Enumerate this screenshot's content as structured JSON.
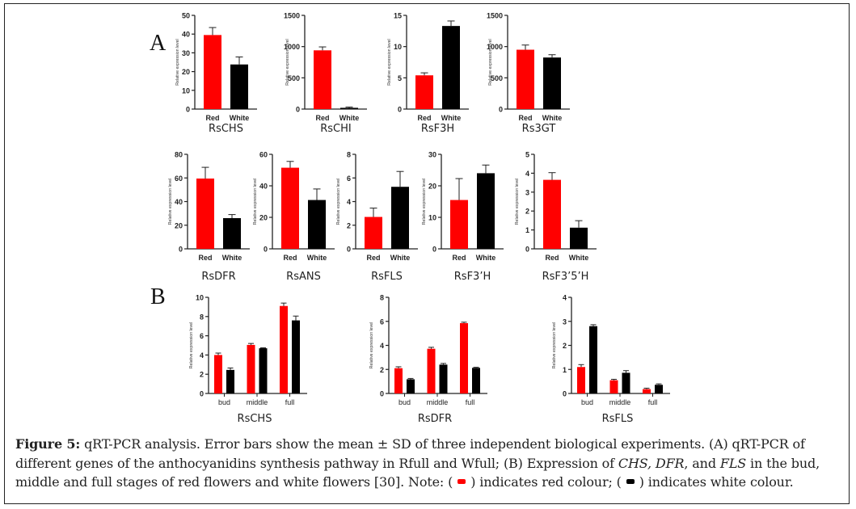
{
  "panel_labels": {
    "a": "A",
    "b": "B"
  },
  "colors": {
    "red": "#ff0000",
    "white_series": "#000000",
    "axis": "#222222"
  },
  "caption": {
    "figure_label": "Figure 5:",
    "part1": " qRT-PCR analysis. Error bars show the mean ± SD of three independent biological experiments. (A) qRT-PCR of different genes of the anthocyanidins synthesis pathway in Rfull and Wfull; (B) Expression of ",
    "gene1": "CHS,",
    "sep1": " ",
    "gene2": "DFR",
    "sep2": ", and ",
    "gene3": "FLS",
    "part2": " in the bud, middle and full stages of red flowers and white flowers [30]. Note: (",
    "part3": ") indicates red colour; (",
    "part4": ") indicates white colour."
  },
  "chart_data": [
    {
      "type": "bar",
      "panel": "A",
      "title": "RsCHS",
      "ylabel": "Relative expression level",
      "categories": [
        "Red",
        "White"
      ],
      "ylim": [
        0,
        50
      ],
      "yticks": [
        0,
        10,
        20,
        30,
        40,
        50
      ],
      "series": [
        {
          "name": "Red",
          "values": [
            39.5,
            0
          ],
          "errors": [
            4,
            0
          ]
        },
        {
          "name": "White",
          "values": [
            0,
            23.8
          ],
          "errors": [
            0,
            4
          ]
        }
      ]
    },
    {
      "type": "bar",
      "panel": "A",
      "title": "RsCHI",
      "ylabel": "Relative expression level",
      "categories": [
        "Red",
        "White"
      ],
      "ylim": [
        0,
        1500
      ],
      "yticks": [
        0,
        500,
        1000,
        1500
      ],
      "series": [
        {
          "name": "Red",
          "values": [
            940,
            0
          ],
          "errors": [
            55,
            0
          ]
        },
        {
          "name": "White",
          "values": [
            0,
            20
          ],
          "errors": [
            0,
            12
          ]
        }
      ]
    },
    {
      "type": "bar",
      "panel": "A",
      "title": "RsF3H",
      "ylabel": "Relative expression level",
      "categories": [
        "Red",
        "White"
      ],
      "ylim": [
        0,
        15
      ],
      "yticks": [
        0,
        5,
        10,
        15
      ],
      "series": [
        {
          "name": "Red",
          "values": [
            5.4,
            0
          ],
          "errors": [
            0.4,
            0
          ]
        },
        {
          "name": "White",
          "values": [
            0,
            13.3
          ],
          "errors": [
            0,
            0.8
          ]
        }
      ]
    },
    {
      "type": "bar",
      "panel": "A",
      "title": "Rs3GT",
      "ylabel": "Relative expression level",
      "categories": [
        "Red",
        "White"
      ],
      "ylim": [
        0,
        1500
      ],
      "yticks": [
        0,
        500,
        1000,
        1500
      ],
      "series": [
        {
          "name": "Red",
          "values": [
            950,
            0
          ],
          "errors": [
            75,
            0
          ]
        },
        {
          "name": "White",
          "values": [
            0,
            825
          ],
          "errors": [
            0,
            45
          ]
        }
      ]
    },
    {
      "type": "bar",
      "panel": "A",
      "title": "RsDFR",
      "ylabel": "Relative expression level",
      "categories": [
        "Red",
        "White"
      ],
      "ylim": [
        0,
        80
      ],
      "yticks": [
        0,
        20,
        40,
        60,
        80
      ],
      "series": [
        {
          "name": "Red",
          "values": [
            59.5,
            0
          ],
          "errors": [
            9.5,
            0
          ]
        },
        {
          "name": "White",
          "values": [
            0,
            26
          ],
          "errors": [
            0,
            3
          ]
        }
      ]
    },
    {
      "type": "bar",
      "panel": "A",
      "title": "RsANS",
      "ylabel": "Relative expression level",
      "categories": [
        "Red",
        "White"
      ],
      "ylim": [
        0,
        60
      ],
      "yticks": [
        0,
        20,
        40,
        60
      ],
      "series": [
        {
          "name": "Red",
          "values": [
            51.5,
            0
          ],
          "errors": [
            4,
            0
          ]
        },
        {
          "name": "White",
          "values": [
            0,
            31
          ],
          "errors": [
            0,
            7
          ]
        }
      ]
    },
    {
      "type": "bar",
      "panel": "A",
      "title": "RsFLS",
      "ylabel": "Relative expression level",
      "categories": [
        "Red",
        "White"
      ],
      "ylim": [
        0,
        8
      ],
      "yticks": [
        0,
        2,
        4,
        6,
        8
      ],
      "series": [
        {
          "name": "Red",
          "values": [
            2.7,
            0
          ],
          "errors": [
            0.75,
            0
          ]
        },
        {
          "name": "White",
          "values": [
            0,
            5.25
          ],
          "errors": [
            0,
            1.3
          ]
        }
      ]
    },
    {
      "type": "bar",
      "panel": "A",
      "title": "RsF3’H",
      "ylabel": "Relative expression level",
      "categories": [
        "Red",
        "White"
      ],
      "ylim": [
        0,
        30
      ],
      "yticks": [
        0,
        10,
        20,
        30
      ],
      "series": [
        {
          "name": "Red",
          "values": [
            15.5,
            0
          ],
          "errors": [
            6.8,
            0
          ]
        },
        {
          "name": "White",
          "values": [
            0,
            24
          ],
          "errors": [
            0,
            2.6
          ]
        }
      ]
    },
    {
      "type": "bar",
      "panel": "A",
      "title": "RsF3’5’H",
      "ylabel": "Relative expression level",
      "categories": [
        "Red",
        "White"
      ],
      "ylim": [
        0,
        5
      ],
      "yticks": [
        0,
        1,
        2,
        3,
        4,
        5
      ],
      "series": [
        {
          "name": "Red",
          "values": [
            3.65,
            0
          ],
          "errors": [
            0.38,
            0
          ]
        },
        {
          "name": "White",
          "values": [
            0,
            1.12
          ],
          "errors": [
            0,
            0.37
          ]
        }
      ]
    },
    {
      "type": "bar",
      "panel": "B",
      "title": "RsCHS",
      "ylabel": "Relative expression level",
      "categories": [
        "bud",
        "middle",
        "full"
      ],
      "ylim": [
        0,
        10
      ],
      "yticks": [
        0,
        2,
        4,
        6,
        8,
        10
      ],
      "series": [
        {
          "name": "Red",
          "values": [
            4.0,
            5.05,
            9.1
          ],
          "errors": [
            0.2,
            0.15,
            0.3
          ]
        },
        {
          "name": "White",
          "values": [
            2.45,
            4.7,
            7.6
          ],
          "errors": [
            0.2,
            0.05,
            0.45
          ]
        }
      ]
    },
    {
      "type": "bar",
      "panel": "B",
      "title": "RsDFR",
      "ylabel": "Relative expression level",
      "categories": [
        "bud",
        "middle",
        "full"
      ],
      "ylim": [
        0,
        8
      ],
      "yticks": [
        0,
        2,
        4,
        6,
        8
      ],
      "series": [
        {
          "name": "Red",
          "values": [
            2.1,
            3.72,
            5.85
          ],
          "errors": [
            0.12,
            0.12,
            0.08
          ]
        },
        {
          "name": "White",
          "values": [
            1.18,
            2.4,
            2.13
          ],
          "errors": [
            0.07,
            0.1,
            0.05
          ]
        }
      ]
    },
    {
      "type": "bar",
      "panel": "B",
      "title": "RsFLS",
      "ylabel": "Relative expression level",
      "categories": [
        "bud",
        "middle",
        "full"
      ],
      "ylim": [
        0,
        4
      ],
      "yticks": [
        0,
        1,
        2,
        3,
        4
      ],
      "series": [
        {
          "name": "Red",
          "values": [
            1.1,
            0.55,
            0.18
          ],
          "errors": [
            0.1,
            0.04,
            0.04
          ]
        },
        {
          "name": "White",
          "values": [
            2.8,
            0.86,
            0.36
          ],
          "errors": [
            0.06,
            0.09,
            0.04
          ]
        }
      ]
    }
  ]
}
